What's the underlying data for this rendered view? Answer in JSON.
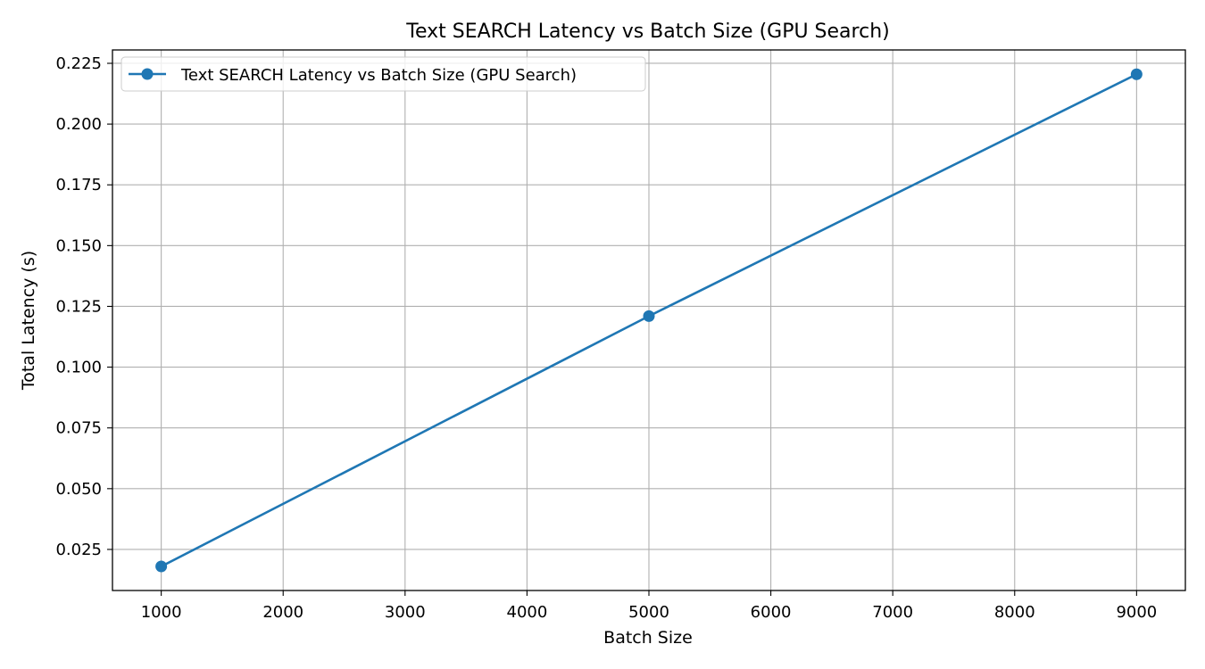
{
  "chart_data": {
    "type": "line",
    "title": "Text SEARCH Latency vs Batch Size (GPU Search)",
    "xlabel": "Batch Size",
    "ylabel": "Total Latency (s)",
    "x": [
      1000,
      5000,
      9000
    ],
    "series": [
      {
        "name": "Text SEARCH Latency vs Batch Size (GPU Search)",
        "values": [
          0.018,
          0.121,
          0.2205
        ],
        "color": "#1f77b4",
        "marker": "circle"
      }
    ],
    "xlim": [
      600,
      9400
    ],
    "ylim": [
      0.0081,
      0.2305
    ],
    "xticks": [
      1000,
      2000,
      3000,
      4000,
      5000,
      6000,
      7000,
      8000,
      9000
    ],
    "yticks": [
      0.025,
      0.05,
      0.075,
      0.1,
      0.125,
      0.15,
      0.175,
      0.2,
      0.225
    ],
    "ytick_labels": [
      "0.025",
      "0.050",
      "0.075",
      "0.100",
      "0.125",
      "0.150",
      "0.175",
      "0.200",
      "0.225"
    ],
    "grid": true,
    "legend_position": "top-left"
  }
}
